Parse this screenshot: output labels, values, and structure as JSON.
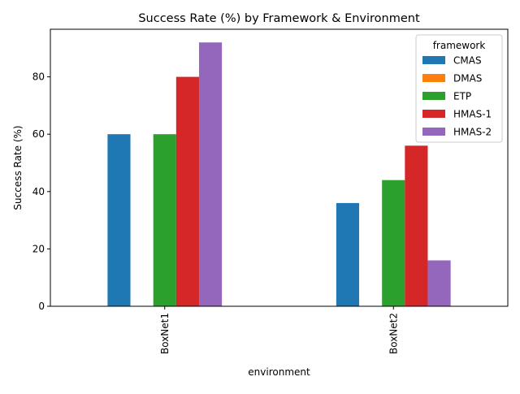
{
  "chart_data": {
    "type": "bar",
    "title": "Success Rate (%) by Framework & Environment",
    "xlabel": "environment",
    "ylabel": "Success Rate (%)",
    "categories": [
      "BoxNet1",
      "BoxNet2"
    ],
    "ylim": [
      0,
      96.6
    ],
    "yticks": [
      0,
      20,
      40,
      60,
      80
    ],
    "grid": false,
    "legend": {
      "title": "framework",
      "placement": "top-right"
    },
    "series": [
      {
        "name": "CMAS",
        "color": "#1f77b4",
        "values": [
          60,
          36
        ]
      },
      {
        "name": "DMAS",
        "color": "#ff7f0e",
        "values": [
          0,
          0
        ]
      },
      {
        "name": "ETP",
        "color": "#2ca02c",
        "values": [
          60,
          44
        ]
      },
      {
        "name": "HMAS-1",
        "color": "#d62728",
        "values": [
          80,
          56
        ]
      },
      {
        "name": "HMAS-2",
        "color": "#9467bd",
        "values": [
          92,
          16
        ]
      }
    ]
  }
}
